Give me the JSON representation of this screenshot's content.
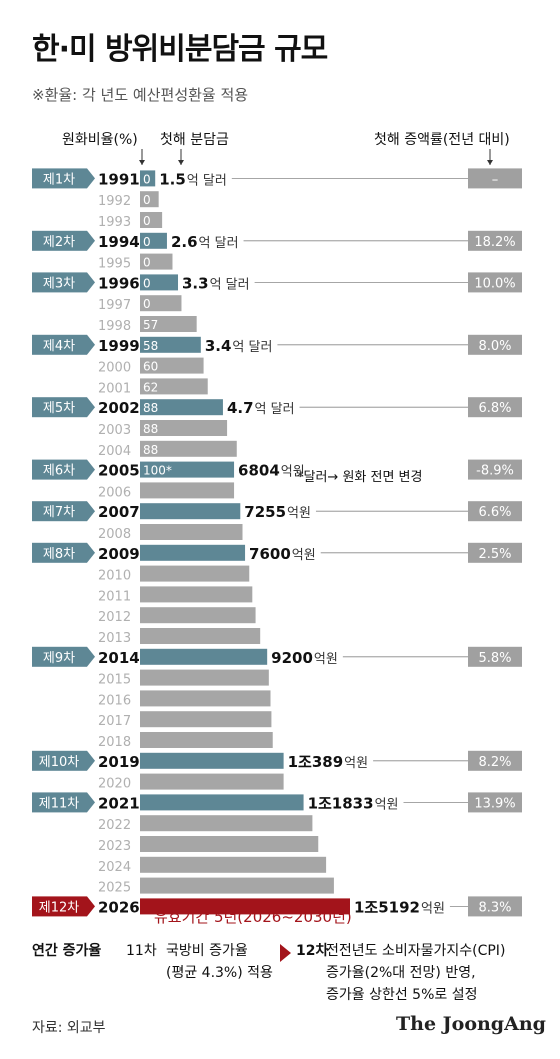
{
  "title": "한·미 방위비분담금 규모",
  "note": "※환율: 각 년도 예산편성환율 적용",
  "headers": {
    "won_ratio": "원화비율(%)",
    "first_year": "첫해 분담금",
    "increase": "첫해 증액률(전년 대비)"
  },
  "footnote": "*달러→ 원화 전면 변경",
  "validity": "유효기간 5년(2026~2030년)",
  "bottom": {
    "label": "연간 증가율",
    "left_title": "11차",
    "left_text1": "국방비 증가율",
    "left_text2": "(평균 4.3%) 적용",
    "right_title": "12차",
    "right_text1": "전전년도 소비자물가지수(CPI)",
    "right_text2": "증가율(2%대 전망) 반영,",
    "right_text3": "증가율 상한선 5%로 설정"
  },
  "source": "자료: 외교부",
  "logo": "The JoongAng",
  "colors": {
    "teal": "#5e8795",
    "gray": "#a6a6a6",
    "red": "#a3141b",
    "light_year": "#b0b0b0",
    "badge_gray": "#a0a0a0"
  },
  "chart_data": {
    "type": "bar",
    "note": "bar length = relative annual contribution; rows list year, KRW ratio (%), first-year amount, first-year increase",
    "rows": [
      {
        "year": "1991",
        "agreement": "제1차",
        "ratio": "0",
        "amount_num": "1.5",
        "amount_unit": "억 달러",
        "increase": "–",
        "value": 1100
      },
      {
        "year": "1992",
        "ratio": "0",
        "value": 1350
      },
      {
        "year": "1993",
        "ratio": "0",
        "value": 1600
      },
      {
        "year": "1994",
        "agreement": "제2차",
        "ratio": "0",
        "amount_num": "2.6",
        "amount_unit": "억 달러",
        "increase": "18.2%",
        "value": 1950
      },
      {
        "year": "1995",
        "ratio": "0",
        "value": 2350
      },
      {
        "year": "1996",
        "agreement": "제3차",
        "ratio": "0",
        "amount_num": "3.3",
        "amount_unit": "억 달러",
        "increase": "10.0%",
        "value": 2750
      },
      {
        "year": "1997",
        "ratio": "0",
        "value": 3000
      },
      {
        "year": "1998",
        "ratio": "57",
        "value": 4100
      },
      {
        "year": "1999",
        "agreement": "제4차",
        "ratio": "58",
        "amount_num": "3.4",
        "amount_unit": "억 달러",
        "increase": "8.0%",
        "value": 4400
      },
      {
        "year": "2000",
        "ratio": "60",
        "value": 4600
      },
      {
        "year": "2001",
        "ratio": "62",
        "value": 4900
      },
      {
        "year": "2002",
        "agreement": "제5차",
        "ratio": "88",
        "amount_num": "4.7",
        "amount_unit": "억 달러",
        "increase": "6.8%",
        "value": 6000
      },
      {
        "year": "2003",
        "ratio": "88",
        "value": 6300
      },
      {
        "year": "2004",
        "ratio": "88",
        "value": 7000
      },
      {
        "year": "2005",
        "agreement": "제6차",
        "ratio": "100*",
        "amount_num": "6804",
        "amount_unit": "억원",
        "increase": "-8.9%",
        "value": 6804
      },
      {
        "year": "2006",
        "value": 6804
      },
      {
        "year": "2007",
        "agreement": "제7차",
        "ratio": "",
        "amount_num": "7255",
        "amount_unit": "억원",
        "increase": "6.6%",
        "value": 7255
      },
      {
        "year": "2008",
        "value": 7415
      },
      {
        "year": "2009",
        "agreement": "제8차",
        "ratio": "",
        "amount_num": "7600",
        "amount_unit": "억원",
        "increase": "2.5%",
        "value": 7600
      },
      {
        "year": "2010",
        "value": 7904
      },
      {
        "year": "2011",
        "value": 8125
      },
      {
        "year": "2012",
        "value": 8361
      },
      {
        "year": "2013",
        "value": 8695
      },
      {
        "year": "2014",
        "agreement": "제9차",
        "ratio": "",
        "amount_num": "9200",
        "amount_unit": "억원",
        "increase": "5.8%",
        "value": 9200
      },
      {
        "year": "2015",
        "value": 9320
      },
      {
        "year": "2016",
        "value": 9441
      },
      {
        "year": "2017",
        "value": 9507
      },
      {
        "year": "2018",
        "value": 9602
      },
      {
        "year": "2019",
        "agreement": "제10차",
        "ratio": "",
        "amount_num": "1조389",
        "amount_unit": "억원",
        "increase": "8.2%",
        "value": 10389
      },
      {
        "year": "2020",
        "value": 10389
      },
      {
        "year": "2021",
        "agreement": "제11차",
        "ratio": "",
        "amount_num": "1조1833",
        "amount_unit": "억원",
        "increase": "13.9%",
        "value": 11833
      },
      {
        "year": "2022",
        "value": 12472
      },
      {
        "year": "2023",
        "value": 12896
      },
      {
        "year": "2024",
        "value": 13463
      },
      {
        "year": "2025",
        "value": 14028
      },
      {
        "year": "2026",
        "agreement": "제12차",
        "ratio": "",
        "amount_num": "1조5192",
        "amount_unit": "억원",
        "increase": "8.3%",
        "value": 15192,
        "highlight": true
      }
    ]
  }
}
